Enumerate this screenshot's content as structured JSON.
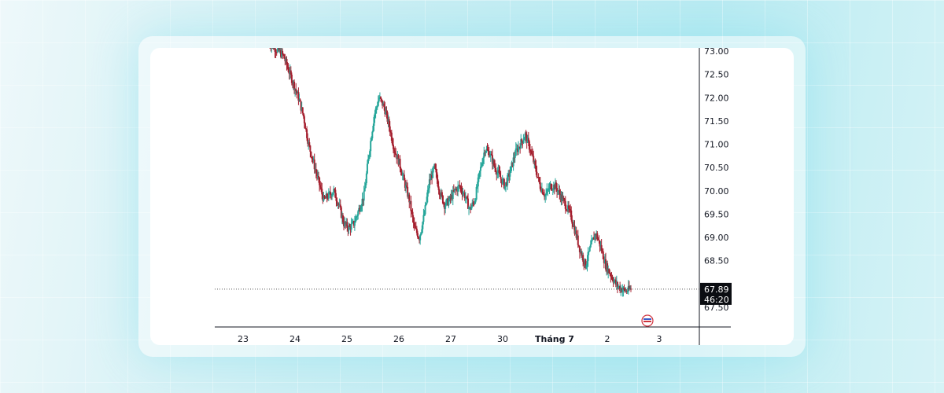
{
  "chart_data": {
    "type": "candlestick",
    "title": "",
    "xlabel": "",
    "ylabel": "",
    "ylim": [
      67.2,
      73.05
    ],
    "y_ticks": [
      "73.00",
      "72.50",
      "72.00",
      "71.50",
      "71.00",
      "70.50",
      "70.00",
      "69.50",
      "69.00",
      "68.50",
      "67.50"
    ],
    "x_ticks": [
      {
        "label": "23",
        "bold": false
      },
      {
        "label": "24",
        "bold": false
      },
      {
        "label": "25",
        "bold": false
      },
      {
        "label": "26",
        "bold": false
      },
      {
        "label": "27",
        "bold": false
      },
      {
        "label": "30",
        "bold": false
      },
      {
        "label": "Tháng 7",
        "bold": true
      },
      {
        "label": "2",
        "bold": false
      },
      {
        "label": "3",
        "bold": false
      }
    ],
    "current_price": {
      "value": "67.89",
      "countdown": "46:20"
    },
    "colors": {
      "up": "#26a69a",
      "down": "#a5202f",
      "badge": "#0b0d12",
      "axis": "#131722"
    },
    "close_path": [
      73.2,
      73.1,
      73.0,
      72.9,
      72.6,
      72.3,
      72.0,
      71.6,
      71.0,
      70.6,
      70.2,
      69.8,
      69.9,
      70.0,
      69.7,
      69.3,
      69.2,
      69.3,
      69.6,
      69.9,
      70.8,
      71.6,
      72.0,
      71.8,
      71.4,
      70.9,
      70.6,
      70.2,
      69.8,
      69.2,
      69.0,
      69.5,
      70.2,
      70.5,
      70.0,
      69.7,
      69.8,
      70.0,
      70.1,
      69.9,
      69.6,
      69.8,
      70.4,
      70.9,
      70.8,
      70.5,
      70.3,
      70.1,
      70.4,
      70.8,
      71.0,
      71.2,
      70.9,
      70.5,
      70.1,
      69.9,
      70.1,
      70.1,
      69.9,
      69.7,
      69.5,
      69.1,
      68.7,
      68.4,
      68.8,
      69.1,
      68.8,
      68.4,
      68.2,
      68.0,
      67.9,
      67.85,
      67.89
    ],
    "session_marker": "economic-calendar-event-icon"
  }
}
